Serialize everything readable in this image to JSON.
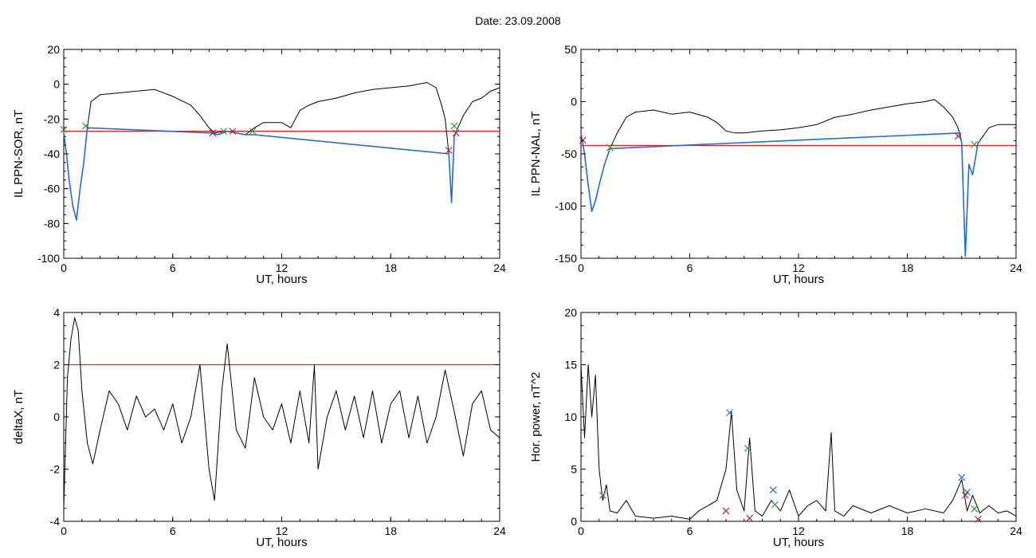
{
  "title": "Date:  23.09.2008",
  "chart_data": [
    {
      "type": "line",
      "xlabel": "UT, hours",
      "ylabel": "IL PPN-SOR, nT",
      "xlim": [
        0,
        24
      ],
      "ylim": [
        -100,
        20
      ],
      "xticks": [
        0,
        6,
        12,
        18,
        24
      ],
      "yticks": [
        -100,
        -80,
        -60,
        -40,
        -20,
        0,
        20
      ],
      "threshold": -27,
      "series": [
        {
          "color": "#000000",
          "x": [
            0,
            0.15,
            0.3,
            0.5,
            0.7,
            0.9,
            1.1,
            1.3,
            1.5,
            2,
            3,
            4,
            5,
            6,
            7,
            7.5,
            8,
            8.3,
            9,
            10,
            10.5,
            11,
            12,
            12.5,
            13,
            13.5,
            14,
            15,
            16,
            17,
            18,
            19,
            20,
            20.5,
            20.8,
            21,
            21.2,
            21.35,
            21.5,
            21.7,
            22,
            22.5,
            23,
            23.5,
            24
          ],
          "y": [
            -28,
            -40,
            -55,
            -70,
            -78,
            -60,
            -45,
            -25,
            -10,
            -6,
            -5,
            -4,
            -3,
            -7,
            -12,
            -18,
            -25,
            -28,
            -27,
            -29,
            -25,
            -22,
            -22,
            -25,
            -15,
            -12,
            -10,
            -8,
            -5,
            -3,
            -2,
            -1,
            1,
            -2,
            -12,
            -20,
            -40,
            -68,
            -30,
            -25,
            -18,
            -10,
            -8,
            -4,
            -2
          ]
        },
        {
          "color": "#1f6fd1",
          "x": [
            0,
            0.15,
            0.3,
            0.5,
            0.7,
            0.9,
            1.1,
            1.3,
            8.1,
            8.5,
            9,
            9.5,
            10,
            10.5,
            21.2,
            21.35,
            21.5,
            21.7
          ],
          "y": [
            -28,
            -40,
            -55,
            -70,
            -78,
            -60,
            -45,
            -25,
            -28,
            -29,
            -27,
            -28,
            -29,
            -29,
            -40,
            -68,
            -30,
            -25
          ]
        }
      ],
      "markers": [
        {
          "color": "#c0203a",
          "points": [
            [
              8.2,
              -28
            ],
            [
              9.3,
              -27
            ],
            [
              21.2,
              -38
            ],
            [
              21.6,
              -28
            ]
          ]
        },
        {
          "color": "#2aa02a",
          "points": [
            [
              0,
              -26
            ],
            [
              1.2,
              -24
            ],
            [
              8.8,
              -27
            ],
            [
              10.4,
              -27
            ],
            [
              21.5,
              -24
            ]
          ]
        }
      ]
    },
    {
      "type": "line",
      "xlabel": "UT, hours",
      "ylabel": "IL PPN-NAL, nT",
      "xlim": [
        0,
        24
      ],
      "ylim": [
        -150,
        50
      ],
      "xticks": [
        0,
        6,
        12,
        18,
        24
      ],
      "yticks": [
        -150,
        -100,
        -50,
        0,
        50
      ],
      "threshold": -42,
      "series": [
        {
          "color": "#000000",
          "x": [
            0,
            0.2,
            0.4,
            0.6,
            0.8,
            1,
            1.3,
            1.6,
            2,
            2.5,
            3,
            4,
            5,
            6,
            7,
            7.5,
            8,
            8.5,
            9,
            10,
            11,
            12,
            13,
            14,
            15,
            16,
            17,
            18,
            19,
            19.5,
            20,
            20.5,
            20.8,
            21,
            21.2,
            21.4,
            21.6,
            21.9,
            22.5,
            23,
            24
          ],
          "y": [
            -30,
            -50,
            -80,
            -105,
            -95,
            -80,
            -60,
            -45,
            -30,
            -15,
            -10,
            -8,
            -12,
            -10,
            -15,
            -20,
            -28,
            -30,
            -30,
            -28,
            -27,
            -25,
            -22,
            -15,
            -12,
            -8,
            -5,
            -2,
            0,
            2,
            -5,
            -15,
            -25,
            -40,
            -148,
            -60,
            -70,
            -40,
            -25,
            -22,
            -22
          ]
        },
        {
          "color": "#1f6fd1",
          "x": [
            0,
            0.2,
            0.4,
            0.6,
            0.8,
            1,
            1.3,
            1.6,
            20.9,
            21,
            21.2,
            21.4,
            21.6,
            21.9
          ],
          "y": [
            -30,
            -50,
            -80,
            -105,
            -95,
            -80,
            -60,
            -45,
            -30,
            -40,
            -148,
            -60,
            -70,
            -40
          ]
        }
      ],
      "markers": [
        {
          "color": "#c0203a",
          "points": [
            [
              0.1,
              -37
            ],
            [
              20.8,
              -33
            ]
          ]
        },
        {
          "color": "#2aa02a",
          "points": [
            [
              1.6,
              -44
            ],
            [
              21.7,
              -41
            ]
          ]
        }
      ]
    },
    {
      "type": "line",
      "xlabel": "UT, hours",
      "ylabel": "deltaX, nT",
      "xlim": [
        0,
        24
      ],
      "ylim": [
        -4,
        4
      ],
      "xticks": [
        0,
        6,
        12,
        18,
        24
      ],
      "yticks": [
        -4,
        -2,
        0,
        2,
        4
      ],
      "threshold": 2,
      "series": [
        {
          "color": "#000000",
          "x": [
            0,
            0.2,
            0.4,
            0.6,
            0.8,
            1,
            1.3,
            1.6,
            2,
            2.5,
            3,
            3.5,
            4,
            4.5,
            5,
            5.5,
            6,
            6.5,
            7,
            7.5,
            8,
            8.3,
            8.7,
            9,
            9.5,
            10,
            10.5,
            11,
            11.5,
            12,
            12.5,
            13,
            13.5,
            13.8,
            14,
            14.5,
            15,
            15.5,
            16,
            16.5,
            17,
            17.5,
            18,
            18.5,
            19,
            19.5,
            20,
            20.5,
            21,
            21.5,
            22,
            22.5,
            23,
            23.5,
            24
          ],
          "y": [
            -3.5,
            1.5,
            3,
            3.8,
            3.3,
            1,
            -1,
            -1.8,
            -0.5,
            1,
            0.5,
            -0.5,
            0.8,
            0,
            0.3,
            -0.5,
            0.5,
            -1,
            0,
            2,
            -2,
            -3.2,
            1,
            2.8,
            -0.5,
            -1.2,
            1.5,
            0,
            -0.5,
            0.5,
            -1,
            1,
            -1,
            2,
            -2,
            0,
            1,
            -0.5,
            0.8,
            -0.8,
            1,
            -1,
            0.5,
            1,
            -0.8,
            0.8,
            -1,
            0,
            1.8,
            0.2,
            -1.5,
            0.5,
            1,
            -0.5,
            -0.8
          ]
        }
      ],
      "markers": []
    },
    {
      "type": "line",
      "xlabel": "UT, hours",
      "ylabel": "Hor. power, nT^2",
      "xlim": [
        0,
        24
      ],
      "ylim": [
        0,
        20
      ],
      "xticks": [
        0,
        6,
        12,
        18,
        24
      ],
      "yticks": [
        0,
        5,
        10,
        15,
        20
      ],
      "threshold": null,
      "series": [
        {
          "color": "#000000",
          "x": [
            0,
            0.2,
            0.4,
            0.6,
            0.8,
            1,
            1.2,
            1.4,
            1.6,
            2,
            2.5,
            3,
            4,
            5,
            6,
            6.5,
            7,
            7.5,
            8,
            8.3,
            8.6,
            9,
            9.3,
            9.6,
            10,
            10.5,
            11,
            11.5,
            12,
            12.5,
            13,
            13.5,
            13.8,
            14,
            14.5,
            15,
            16,
            17,
            18,
            19,
            20,
            20.5,
            21,
            21.3,
            21.6,
            22,
            22.5,
            23,
            23.5,
            24
          ],
          "y": [
            15,
            8,
            15,
            10,
            14,
            5,
            2,
            3.5,
            1,
            0.8,
            2,
            0.5,
            0.3,
            0.5,
            0.2,
            1,
            1.5,
            2,
            5,
            10.5,
            3,
            1,
            8,
            1,
            0.5,
            2,
            1,
            3,
            0.5,
            1.5,
            2,
            1,
            8.5,
            1,
            0.5,
            1.5,
            0.8,
            1.5,
            0.8,
            1.2,
            0.8,
            2,
            4,
            1,
            2.5,
            0.8,
            1.5,
            0.8,
            1,
            0.5
          ]
        }
      ],
      "markers": [
        {
          "color": "#1f6fd1",
          "points": [
            [
              8.2,
              10.4
            ],
            [
              10.6,
              3
            ],
            [
              21,
              4.2
            ],
            [
              21.3,
              2.8
            ]
          ]
        },
        {
          "color": "#2aa02a",
          "points": [
            [
              1.2,
              2.5
            ],
            [
              9.2,
              7
            ],
            [
              10.7,
              1.6
            ],
            [
              21.7,
              1.2
            ]
          ]
        },
        {
          "color": "#c0203a",
          "points": [
            [
              8,
              1
            ],
            [
              9.3,
              0.3
            ],
            [
              21.2,
              2.5
            ],
            [
              21.9,
              0.2
            ]
          ]
        }
      ]
    }
  ]
}
